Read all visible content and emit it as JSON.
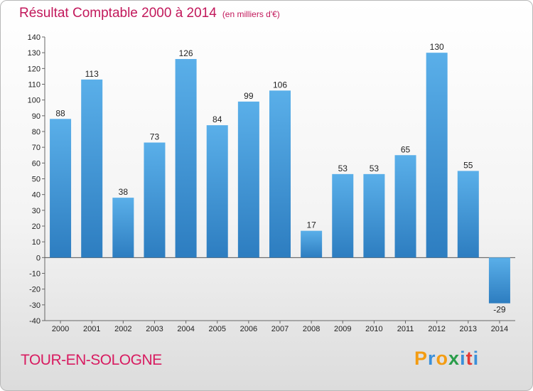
{
  "title": "Résultat Comptable 2000 à 2014",
  "unit_label": "(en milliers d'€)",
  "commune": "TOUR-EN-SOLOGNE",
  "brand": {
    "letters": [
      "P",
      "r",
      "o",
      "x",
      "i",
      "t",
      "i"
    ],
    "colors": [
      "#f39c12",
      "#3a8fd9",
      "#f39c12",
      "#2a9d4a",
      "#3a8fd9",
      "#e53935",
      "#3a8fd9"
    ]
  },
  "colors": {
    "title": "#c2185b",
    "bar_light": "#5aafe9",
    "bar_dark": "#2d7dc0"
  },
  "chart_data": {
    "type": "bar",
    "title": "Résultat Comptable 2000 à 2014",
    "subtitle": "(en milliers d'€)",
    "xlabel": "",
    "ylabel": "",
    "categories": [
      "2000",
      "2001",
      "2002",
      "2003",
      "2004",
      "2005",
      "2006",
      "2007",
      "2008",
      "2009",
      "2010",
      "2011",
      "2012",
      "2013",
      "2014"
    ],
    "values": [
      88,
      113,
      38,
      73,
      126,
      84,
      99,
      106,
      17,
      53,
      53,
      65,
      130,
      55,
      -29
    ],
    "ylim": [
      -40,
      140
    ],
    "yticks": [
      -40,
      -30,
      -20,
      -10,
      0,
      10,
      20,
      30,
      40,
      50,
      60,
      70,
      80,
      90,
      100,
      110,
      120,
      130,
      140
    ],
    "grid": false
  }
}
